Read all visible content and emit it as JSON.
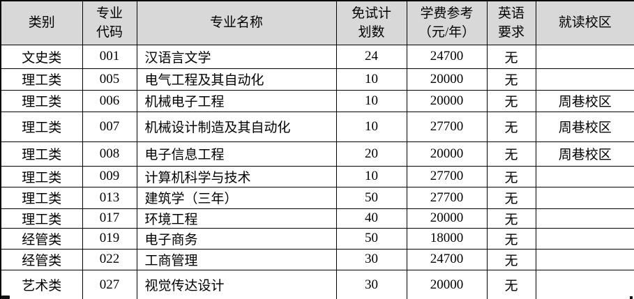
{
  "table": {
    "header_bg": "#d8d8d8",
    "border_color": "#000000",
    "columns": [
      {
        "id": "category",
        "lines": [
          "类别"
        ]
      },
      {
        "id": "major_code",
        "lines": [
          "专业",
          "代码"
        ]
      },
      {
        "id": "major_name",
        "lines": [
          "专业名称"
        ]
      },
      {
        "id": "exempt_quota",
        "lines": [
          "免试计",
          "划数"
        ]
      },
      {
        "id": "tuition",
        "lines": [
          "学费参考",
          "（元/年）"
        ]
      },
      {
        "id": "english",
        "lines": [
          "英语",
          "要求"
        ]
      },
      {
        "id": "campus",
        "lines": [
          "就读校区"
        ]
      }
    ],
    "rows": [
      {
        "category": "文史类",
        "code": "001",
        "name": "汉语言文学",
        "quota": "24",
        "tuition": "24700",
        "english": "无",
        "campus": ""
      },
      {
        "category": "理工类",
        "code": "005",
        "name": "电气工程及其自动化",
        "quota": "10",
        "tuition": "20000",
        "english": "无",
        "campus": ""
      },
      {
        "category": "理工类",
        "code": "006",
        "name": "机械电子工程",
        "quota": "10",
        "tuition": "20000",
        "english": "无",
        "campus": "周巷校区"
      },
      {
        "category": "理工类",
        "code": "007",
        "name": "机械设计制造及其自动化",
        "quota": "10",
        "tuition": "27700",
        "english": "无",
        "campus": "周巷校区"
      },
      {
        "category": "理工类",
        "code": "008",
        "name": "电子信息工程",
        "quota": "20",
        "tuition": "20000",
        "english": "无",
        "campus": "周巷校区"
      },
      {
        "category": "理工类",
        "code": "009",
        "name": "计算机科学与技术",
        "quota": "10",
        "tuition": "27700",
        "english": "无",
        "campus": ""
      },
      {
        "category": "理工类",
        "code": "013",
        "name": "建筑学（三年）",
        "quota": "50",
        "tuition": "27700",
        "english": "无",
        "campus": ""
      },
      {
        "category": "理工类",
        "code": "017",
        "name": "环境工程",
        "quota": "40",
        "tuition": "20000",
        "english": "无",
        "campus": ""
      },
      {
        "category": "经管类",
        "code": "019",
        "name": "电子商务",
        "quota": "50",
        "tuition": "18000",
        "english": "无",
        "campus": ""
      },
      {
        "category": "经管类",
        "code": "022",
        "name": "工商管理",
        "quota": "30",
        "tuition": "24700",
        "english": "无",
        "campus": ""
      },
      {
        "category": "艺术类",
        "code": "027",
        "name": "视觉传达设计",
        "quota": "30",
        "tuition": "20000",
        "english": "无",
        "campus": ""
      }
    ]
  }
}
